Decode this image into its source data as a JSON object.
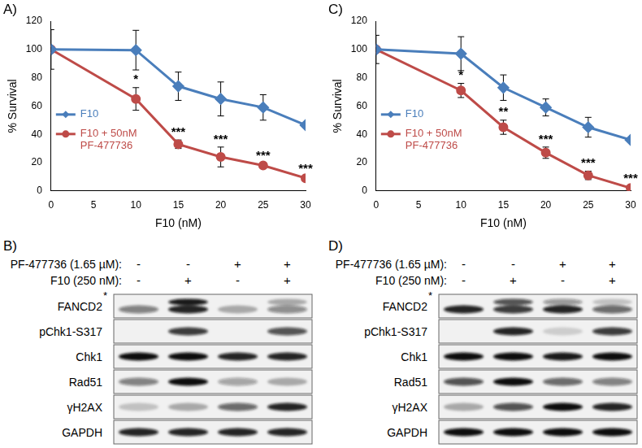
{
  "chart_data": [
    {
      "type": "line",
      "title": "A)",
      "x_label": "F10 (nM)",
      "y_label": "% Survival",
      "x": [
        0,
        10,
        15,
        20,
        25,
        30
      ],
      "xlim": [
        0,
        30
      ],
      "xticks": [
        0,
        5,
        10,
        15,
        20,
        25,
        30
      ],
      "ylim": [
        0,
        120
      ],
      "yticks": [
        0,
        20,
        40,
        60,
        80,
        100,
        120
      ],
      "grid": false,
      "legend": "left",
      "series": [
        {
          "name": "F10",
          "color": "#4a7ebb",
          "marker": "diamond",
          "values": [
            100,
            99.5,
            74,
            65,
            59,
            46.5
          ],
          "errors": [
            14,
            14,
            10,
            12,
            9,
            1
          ]
        },
        {
          "name": "F10 + 50nM PF-477736",
          "color": "#be4b48",
          "marker": "circle",
          "values": [
            100,
            65,
            33,
            24,
            18,
            9
          ],
          "errors": [
            0,
            8,
            3,
            7,
            1,
            1
          ]
        }
      ],
      "annotations": [
        {
          "x": 10,
          "text": "*"
        },
        {
          "x": 15,
          "text": "***"
        },
        {
          "x": 20,
          "text": "***"
        },
        {
          "x": 25,
          "text": "***"
        },
        {
          "x": 30,
          "text": "***"
        }
      ]
    },
    {
      "type": "line",
      "title": "C)",
      "x_label": "F10 (nM)",
      "y_label": "% Survival",
      "x": [
        0,
        10,
        15,
        20,
        25,
        30
      ],
      "xlim": [
        0,
        30
      ],
      "xticks": [
        0,
        5,
        10,
        15,
        20,
        25,
        30
      ],
      "ylim": [
        0,
        120
      ],
      "yticks": [
        0,
        20,
        40,
        60,
        80,
        100,
        120
      ],
      "grid": false,
      "legend": "left",
      "series": [
        {
          "name": "F10",
          "color": "#4a7ebb",
          "marker": "diamond",
          "values": [
            100,
            97,
            73,
            59,
            45,
            36
          ],
          "errors": [
            10,
            12,
            9,
            6,
            7,
            1
          ]
        },
        {
          "name": "F10 + 50nM PF-477736",
          "color": "#be4b48",
          "marker": "circle",
          "values": [
            100,
            71,
            45,
            27,
            11,
            2
          ],
          "errors": [
            0,
            5,
            5,
            4,
            3,
            1
          ]
        }
      ],
      "annotations": [
        {
          "x": 10,
          "text": "*"
        },
        {
          "x": 15,
          "text": "**"
        },
        {
          "x": 20,
          "text": "***"
        },
        {
          "x": 25,
          "text": "***"
        },
        {
          "x": 30,
          "text": "***"
        }
      ]
    }
  ],
  "blots": [
    {
      "title": "B)",
      "treatments": [
        {
          "label": "PF-477736 (1.65 µM):",
          "signs": [
            "-",
            "-",
            "+",
            "+"
          ]
        },
        {
          "label": "F10 (250 nM):",
          "signs": [
            "-",
            "+",
            "-",
            "+"
          ]
        }
      ],
      "rows": [
        {
          "label": "FANCD2",
          "mark": "*",
          "bands": [
            0.5,
            0.9,
            0.3,
            0.45
          ],
          "upper_bands": [
            0,
            0.95,
            0,
            0.3
          ]
        },
        {
          "label": "pChk1-S317",
          "bands": [
            0,
            0.8,
            0,
            0.7
          ]
        },
        {
          "label": "Chk1",
          "bands": [
            1,
            1,
            0.9,
            0.9
          ]
        },
        {
          "label": "Rad51",
          "bands": [
            0.5,
            1,
            0.35,
            0.3
          ]
        },
        {
          "label": "γH2AX",
          "bands": [
            0.2,
            0.3,
            0.6,
            0.9
          ]
        },
        {
          "label": "GAPDH",
          "bands": [
            0.9,
            0.9,
            0.9,
            0.9
          ]
        }
      ]
    },
    {
      "title": "D)",
      "treatments": [
        {
          "label": "PF-477736 (1.65 µM):",
          "signs": [
            "-",
            "-",
            "+",
            "+"
          ]
        },
        {
          "label": "F10 (250 nM):",
          "signs": [
            "-",
            "+",
            "-",
            "+"
          ]
        }
      ],
      "rows": [
        {
          "label": "FANCD2",
          "mark": "*",
          "bands": [
            0.9,
            0.8,
            0.9,
            0.6
          ],
          "upper_bands": [
            0,
            0.7,
            0.4,
            0.2
          ]
        },
        {
          "label": "pChk1-S317",
          "bands": [
            0,
            0.9,
            0.15,
            0.8
          ]
        },
        {
          "label": "Chk1",
          "bands": [
            1,
            1,
            0.95,
            1
          ]
        },
        {
          "label": "Rad51",
          "bands": [
            0.7,
            1,
            0.6,
            0.5
          ]
        },
        {
          "label": "γH2AX",
          "bands": [
            0.3,
            0.7,
            1,
            0.9
          ]
        },
        {
          "label": "GAPDH",
          "bands": [
            1,
            1,
            1,
            1
          ]
        }
      ]
    }
  ]
}
